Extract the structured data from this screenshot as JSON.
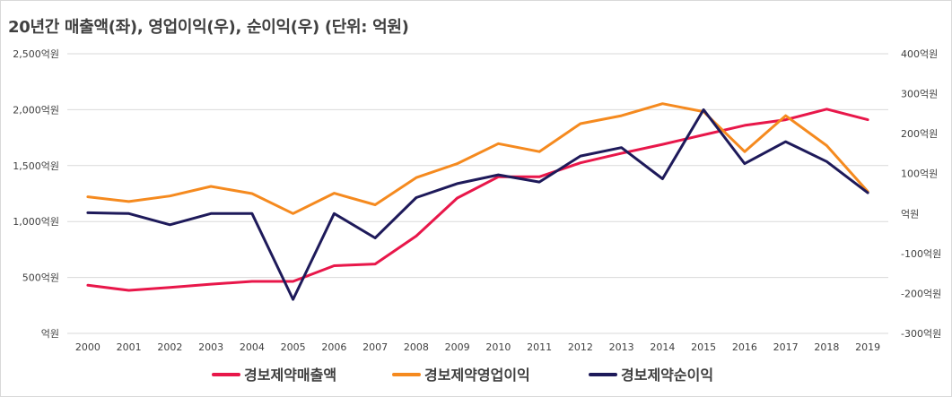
{
  "chart_data": {
    "type": "line",
    "title": "20년간 매출액(좌), 영업이익(우), 순이익(우) (단위: 억원)",
    "x": [
      "2000",
      "2001",
      "2002",
      "2003",
      "2004",
      "2005",
      "2006",
      "2007",
      "2008",
      "2009",
      "2010",
      "2011",
      "2012",
      "2013",
      "2014",
      "2015",
      "2016",
      "2017",
      "2018",
      "2019"
    ],
    "y_left": {
      "ticks": [
        "억원",
        "500억원",
        "1,000억원",
        "1,500억원",
        "2,000억원",
        "2,500억원"
      ],
      "range": [
        0,
        2500
      ]
    },
    "y_right": {
      "ticks": [
        "-300억원",
        "-200억원",
        "-100억원",
        "억원",
        "100억원",
        "200억원",
        "300억원",
        "400억원"
      ],
      "range": [
        -300,
        400
      ]
    },
    "series": [
      {
        "name": "경보제약매출액",
        "axis": "left",
        "color": "#e8174a",
        "values": [
          430,
          385,
          410,
          440,
          465,
          465,
          605,
          620,
          870,
          1210,
          1400,
          1400,
          1525,
          1610,
          1690,
          1775,
          1860,
          1910,
          2005,
          1910
        ]
      },
      {
        "name": "경보제약영업이익",
        "axis": "right",
        "color": "#f58a1f",
        "values": [
          42,
          30,
          44,
          68,
          50,
          0,
          51,
          22,
          90,
          125,
          175,
          155,
          225,
          245,
          275,
          255,
          155,
          245,
          170,
          55
        ]
      },
      {
        "name": "경보제약순이익",
        "axis": "right",
        "color": "#1e1a5a",
        "values": [
          2,
          0,
          -28,
          0,
          0,
          -215,
          0,
          -61,
          40,
          75,
          97,
          79,
          144,
          165,
          87,
          260,
          125,
          180,
          130,
          52
        ]
      }
    ],
    "grid": true,
    "legend": "bottom"
  }
}
